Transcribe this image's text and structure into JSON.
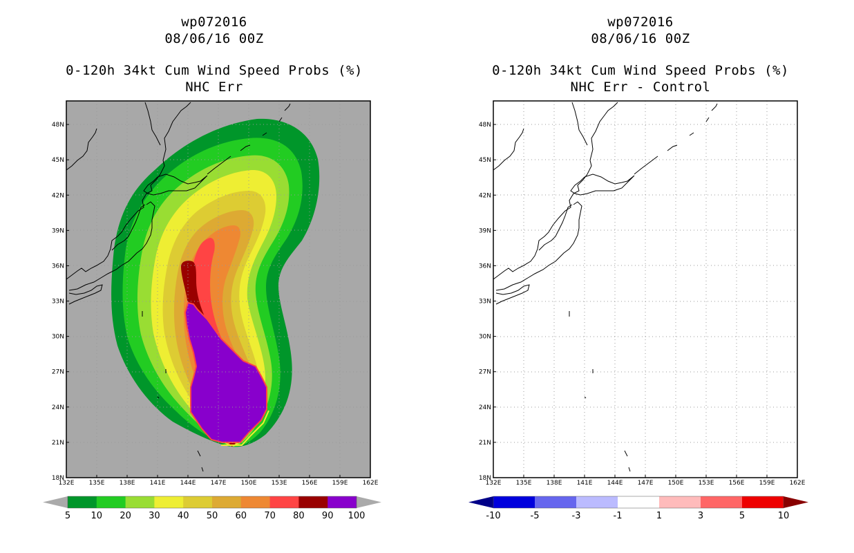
{
  "panels": [
    {
      "title_line1": "wp072016",
      "title_line2": "08/06/16 00Z",
      "title_line3": "0-120h 34kt Cum Wind Speed Probs (%)",
      "title_line4": "NHC Err"
    },
    {
      "title_line1": "wp072016",
      "title_line2": "08/06/16 00Z",
      "title_line3": "0-120h 34kt Cum Wind Speed Probs (%)",
      "title_line4": "NHC Err - Control"
    }
  ],
  "chart_data": [
    {
      "type": "heatmap",
      "title": "0-120h 34kt Cum Wind Speed Probs (%)",
      "subtitle": "NHC Err",
      "x_ticks": [
        "132E",
        "135E",
        "138E",
        "141E",
        "144E",
        "147E",
        "150E",
        "153E",
        "156E",
        "159E",
        "162E"
      ],
      "y_ticks": [
        "48N",
        "45N",
        "42N",
        "39N",
        "36N",
        "33N",
        "30N",
        "27N",
        "24N",
        "21N",
        "18N"
      ],
      "xlim": [
        132,
        162
      ],
      "ylim": [
        18,
        50
      ],
      "colorbar": {
        "labels": [
          "5",
          "10",
          "20",
          "30",
          "40",
          "50",
          "60",
          "70",
          "80",
          "90",
          "100"
        ],
        "colors": [
          "#00962a",
          "#22cc22",
          "#99dd33",
          "#eeee33",
          "#ddcc33",
          "#ddaa33",
          "#ee8833",
          "#ff4444",
          "#990000",
          "#8800cc"
        ],
        "end_colors": [
          "#aaaaaa",
          "#aaaaaa"
        ]
      },
      "background_color": "#a8a8a8"
    },
    {
      "type": "heatmap",
      "title": "0-120h 34kt Cum Wind Speed Probs (%)",
      "subtitle": "NHC Err - Control",
      "x_ticks": [
        "132E",
        "135E",
        "138E",
        "141E",
        "144E",
        "147E",
        "150E",
        "153E",
        "156E",
        "159E",
        "162E"
      ],
      "y_ticks": [
        "48N",
        "45N",
        "42N",
        "39N",
        "36N",
        "33N",
        "30N",
        "27N",
        "24N",
        "21N",
        "18N"
      ],
      "xlim": [
        132,
        162
      ],
      "ylim": [
        18,
        50
      ],
      "colorbar": {
        "labels": [
          "-10",
          "-5",
          "-3",
          "-1",
          "1",
          "3",
          "5",
          "10"
        ],
        "colors": [
          "#0000dd",
          "#6666ee",
          "#bbbbff",
          "#ffffff",
          "#ffbbbb",
          "#ff6666",
          "#ee0000"
        ],
        "end_colors": [
          "#000088",
          "#880000"
        ]
      },
      "background_color": "#ffffff"
    }
  ]
}
